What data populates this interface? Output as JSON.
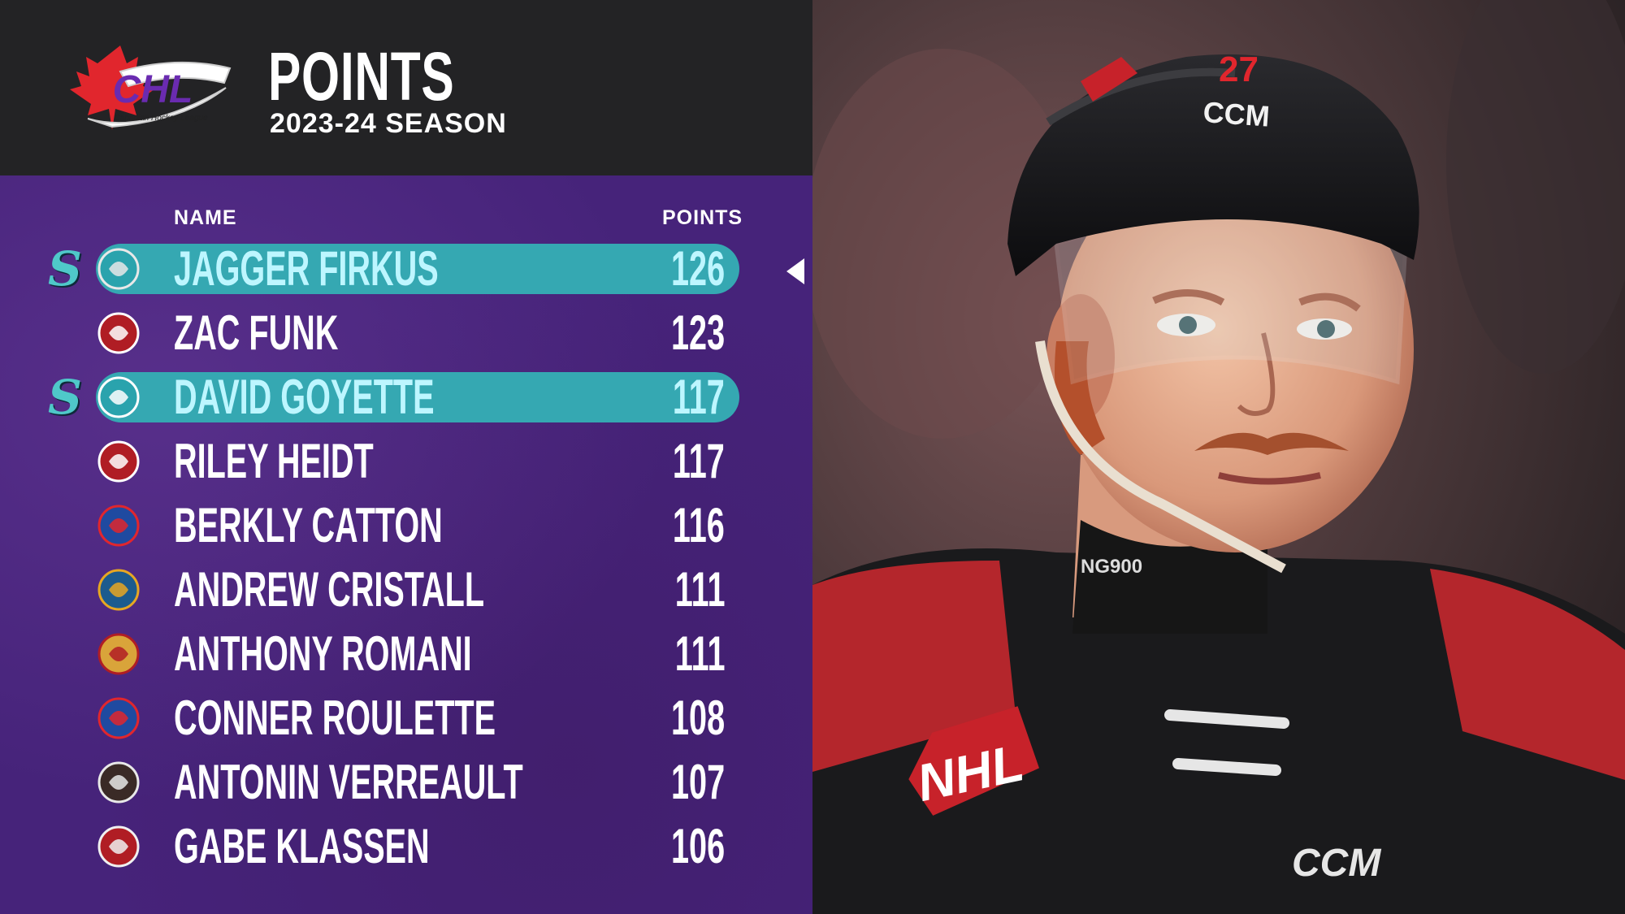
{
  "header": {
    "title": "POINTS",
    "subtitle": "2023-24 SEASON",
    "logo": {
      "text": "CHL",
      "tagline": "Canadian Hockey League"
    }
  },
  "table": {
    "columns": {
      "name": "NAME",
      "points": "POINTS"
    },
    "rows": [
      {
        "name": "JAGGER FIRKUS",
        "points": "126",
        "highlighted": true,
        "team_icon": "moose-jaw-warriors-logo"
      },
      {
        "name": "ZAC FUNK",
        "points": "123",
        "highlighted": false,
        "team_icon": "prince-george-cougars-logo"
      },
      {
        "name": "DAVID GOYETTE",
        "points": "117",
        "highlighted": true,
        "team_icon": "sudbury-wolves-logo"
      },
      {
        "name": "RILEY HEIDT",
        "points": "117",
        "highlighted": false,
        "team_icon": "prince-george-cougars-logo"
      },
      {
        "name": "BERKLY CATTON",
        "points": "116",
        "highlighted": false,
        "team_icon": "spokane-chiefs-logo"
      },
      {
        "name": "ANDREW CRISTALL",
        "points": "111",
        "highlighted": false,
        "team_icon": "kelowna-rockets-logo"
      },
      {
        "name": "ANTHONY ROMANI",
        "points": "111",
        "highlighted": false,
        "team_icon": "north-bay-battalion-logo"
      },
      {
        "name": "CONNER ROULETTE",
        "points": "108",
        "highlighted": false,
        "team_icon": "spokane-chiefs-logo"
      },
      {
        "name": "ANTONIN VERREAULT",
        "points": "107",
        "highlighted": false,
        "team_icon": "gatineau-olympiques-logo"
      },
      {
        "name": "GABE KLASSEN",
        "points": "106",
        "highlighted": false,
        "team_icon": "portland-winterhawks-logo"
      }
    ],
    "kraken_mark": "S"
  },
  "photo": {
    "helmet_brand": "CCM",
    "helmet_number": "27",
    "jersey_brand": "CCM",
    "crest": "NHL",
    "neck_guard": "NG900"
  },
  "colors": {
    "board": "#46237a",
    "header": "#232325",
    "highlight": "#35a8b2",
    "highlight_text": "#bdf6ff"
  }
}
